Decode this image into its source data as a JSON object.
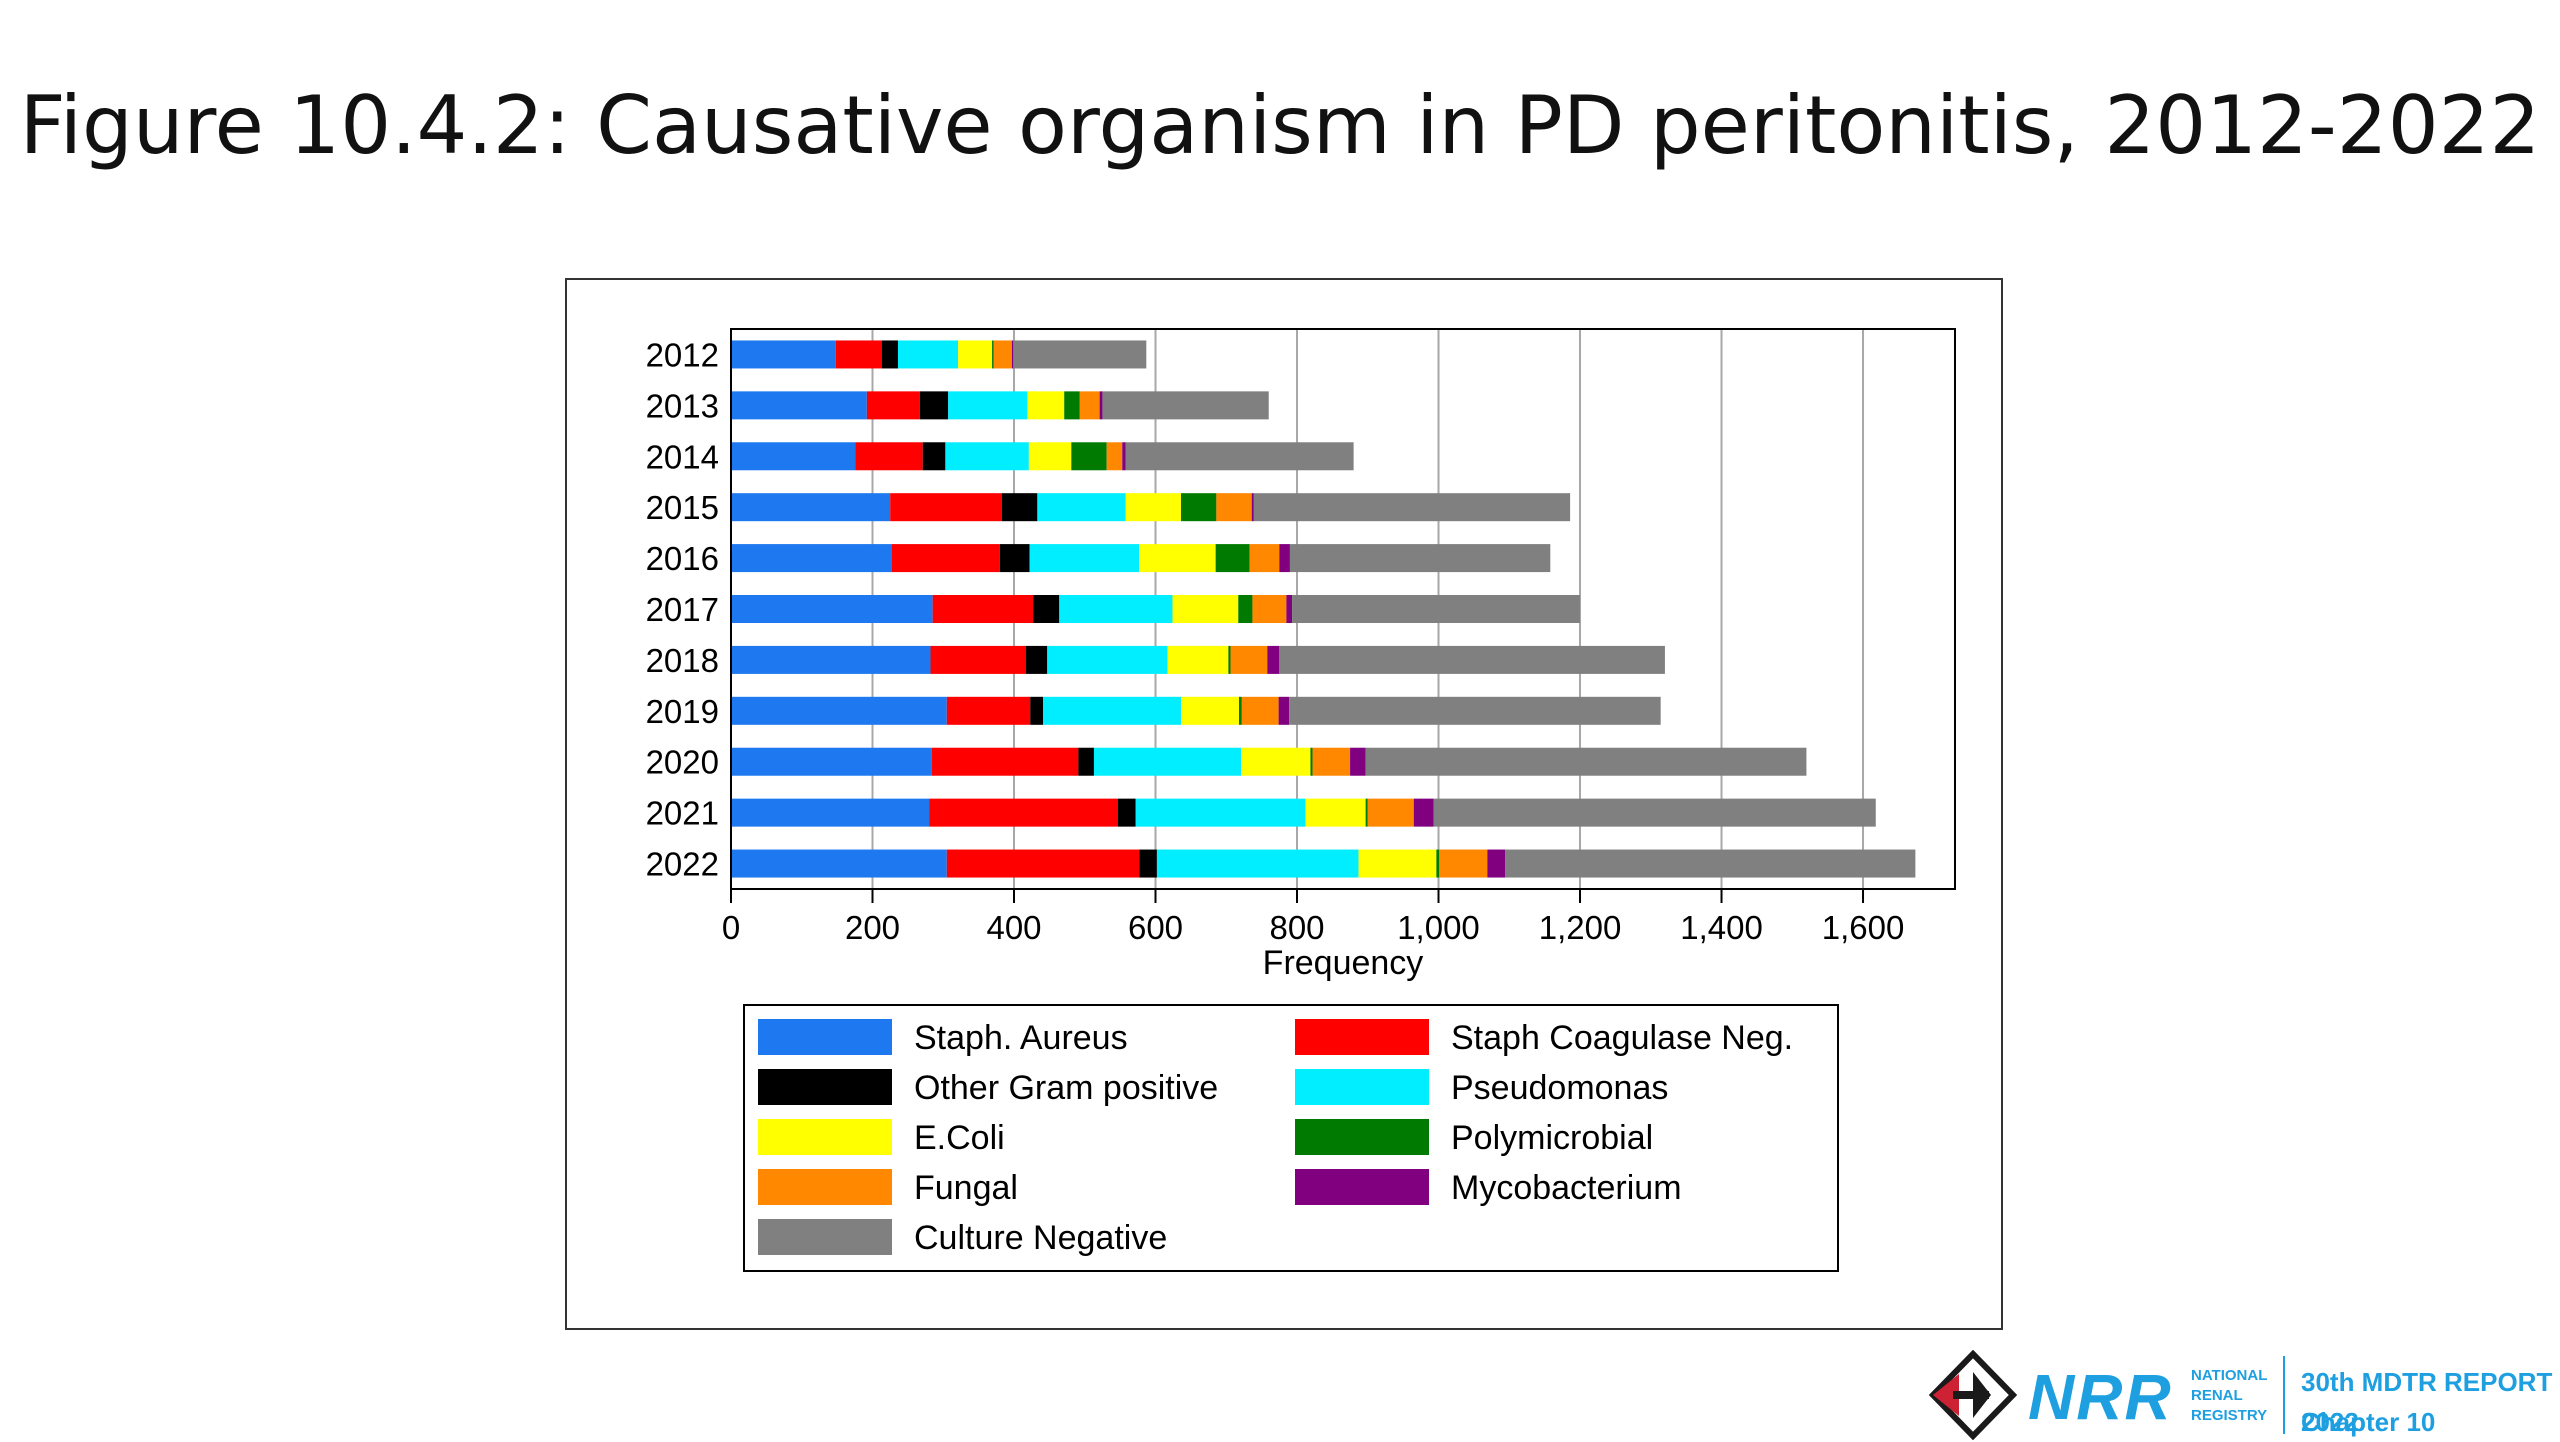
{
  "slide": {
    "title": "Figure 10.4.2: Causative organism in PD peritonitis, 2012-2022"
  },
  "chart_data": {
    "type": "bar",
    "orientation": "horizontal",
    "stacked": true,
    "categories": [
      "2012",
      "2013",
      "2014",
      "2015",
      "2016",
      "2017",
      "2018",
      "2019",
      "2020",
      "2021",
      "2022"
    ],
    "series": [
      {
        "name": "Staph. Aureus",
        "color": "#1e78f0",
        "values": [
          148,
          192,
          176,
          225,
          227,
          285,
          282,
          305,
          284,
          280,
          305
        ]
      },
      {
        "name": "Staph Coagulase Neg.",
        "color": "#ff0000",
        "values": [
          65,
          75,
          95,
          158,
          153,
          142,
          135,
          118,
          207,
          267,
          272
        ]
      },
      {
        "name": "Other Gram positive",
        "color": "#000000",
        "values": [
          23,
          40,
          32,
          50,
          42,
          37,
          30,
          18,
          22,
          25,
          25
        ]
      },
      {
        "name": "Pseudomonas",
        "color": "#00eeff",
        "values": [
          85,
          112,
          118,
          125,
          155,
          160,
          170,
          195,
          208,
          240,
          285
        ]
      },
      {
        "name": "E.Coli",
        "color": "#ffff00",
        "values": [
          48,
          52,
          60,
          78,
          108,
          93,
          86,
          82,
          98,
          85,
          110
        ]
      },
      {
        "name": "Polymicrobial",
        "color": "#007a00",
        "values": [
          2,
          22,
          50,
          50,
          48,
          20,
          3,
          4,
          3,
          3,
          4
        ]
      },
      {
        "name": "Fungal",
        "color": "#ff8800",
        "values": [
          26,
          28,
          22,
          50,
          42,
          48,
          52,
          52,
          53,
          65,
          68
        ]
      },
      {
        "name": "Mycobacterium",
        "color": "#800080",
        "values": [
          2,
          4,
          5,
          3,
          15,
          8,
          17,
          15,
          22,
          28,
          25
        ]
      },
      {
        "name": "Culture Negative",
        "color": "#808080",
        "values": [
          188,
          235,
          322,
          447,
          368,
          407,
          545,
          525,
          623,
          625,
          580
        ]
      }
    ],
    "xlabel": "Frequency",
    "ylabel": "",
    "xlim": [
      0,
      1730
    ],
    "xticks": [
      "0",
      "200",
      "400",
      "600",
      "800",
      "1,000",
      "1,200",
      "1,400",
      "1,600"
    ],
    "grid": "vertical",
    "legend": {
      "position": "bottom",
      "columns": [
        [
          "Staph. Aureus",
          "Other Gram positive",
          "E.Coli",
          "Fungal",
          "Culture Negative"
        ],
        [
          "Staph Coagulase Neg.",
          "Pseudomonas",
          "Polymicrobial",
          "Mycobacterium"
        ]
      ]
    }
  },
  "footer": {
    "logo_text": "NRR",
    "logo_sub": [
      "NATIONAL",
      "RENAL",
      "REGISTRY"
    ],
    "report_line1": "30th MDTR REPORT 2022",
    "report_line2": "Chapter 10"
  }
}
